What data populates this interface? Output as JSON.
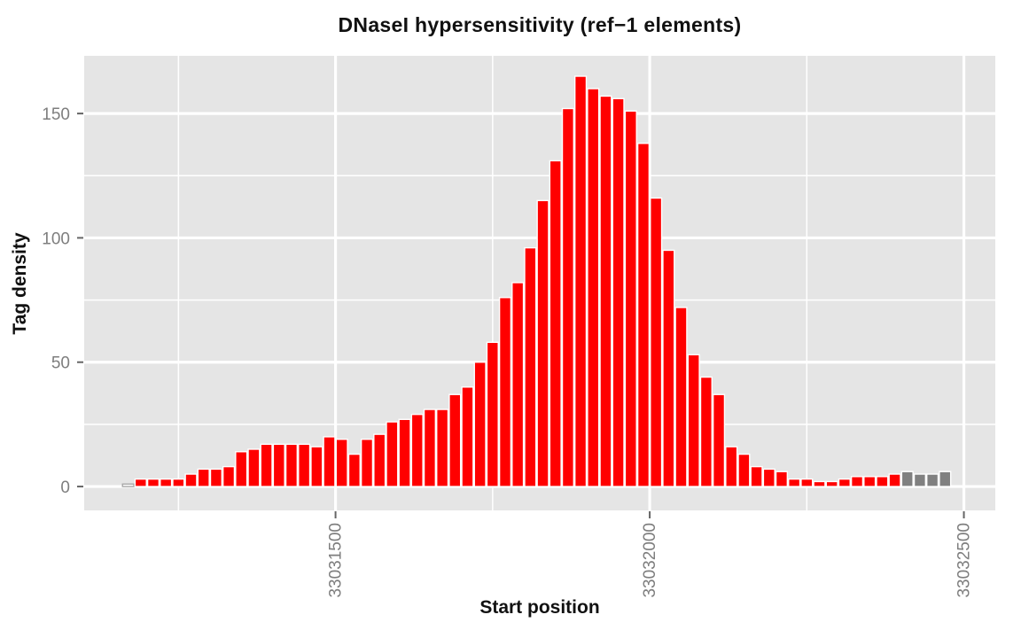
{
  "figure": {
    "title": "DNaseI hypersensitivity (ref−1 elements)",
    "x_axis_title": "Start position",
    "y_axis_title": "Tag density"
  },
  "chart_data": {
    "type": "bar",
    "subtype": "histogram",
    "title": "DNaseI hypersensitivity (ref−1 elements)",
    "xlabel": "Start position",
    "ylabel": "Tag density",
    "grid": true,
    "legend": false,
    "bin_width": 20,
    "x_domain": [
      33031100,
      33032550
    ],
    "y_domain": [
      -9.6,
      173.2
    ],
    "x_major_ticks": [
      33031500,
      33032000,
      33032500
    ],
    "x_tick_labels": [
      "33031500",
      "33032000",
      "33032500"
    ],
    "x_minor_gridlines": [
      33031250,
      33031750,
      33032250
    ],
    "y_major_ticks": [
      0,
      50,
      100,
      150
    ],
    "y_tick_labels": [
      "0",
      "50",
      "100",
      "150"
    ],
    "y_minor_gridlines": [
      25,
      75,
      125
    ],
    "colors": {
      "bar_red": "#FF0000",
      "bar_gray": "#808080",
      "bar_first": "#FFFFFF",
      "bar_first_stroke": "#A8A8A8",
      "bar_stroke": "#FFFFFF",
      "panel_bg": "#E5E5E5",
      "grid": "#FFFFFF",
      "tick_text": "#7E7E7E",
      "tick_mark": "#666666",
      "title_text": "#111111"
    },
    "bars": [
      {
        "start": 33031160,
        "count": 1,
        "group": "first"
      },
      {
        "start": 33031180,
        "count": 3,
        "group": "red"
      },
      {
        "start": 33031200,
        "count": 3,
        "group": "red"
      },
      {
        "start": 33031220,
        "count": 3,
        "group": "red"
      },
      {
        "start": 33031240,
        "count": 3,
        "group": "red"
      },
      {
        "start": 33031260,
        "count": 5,
        "group": "red"
      },
      {
        "start": 33031280,
        "count": 7,
        "group": "red"
      },
      {
        "start": 33031300,
        "count": 7,
        "group": "red"
      },
      {
        "start": 33031320,
        "count": 8,
        "group": "red"
      },
      {
        "start": 33031340,
        "count": 14,
        "group": "red"
      },
      {
        "start": 33031360,
        "count": 15,
        "group": "red"
      },
      {
        "start": 33031380,
        "count": 17,
        "group": "red"
      },
      {
        "start": 33031400,
        "count": 17,
        "group": "red"
      },
      {
        "start": 33031420,
        "count": 17,
        "group": "red"
      },
      {
        "start": 33031440,
        "count": 17,
        "group": "red"
      },
      {
        "start": 33031460,
        "count": 16,
        "group": "red"
      },
      {
        "start": 33031480,
        "count": 20,
        "group": "red"
      },
      {
        "start": 33031500,
        "count": 19,
        "group": "red"
      },
      {
        "start": 33031520,
        "count": 13,
        "group": "red"
      },
      {
        "start": 33031540,
        "count": 19,
        "group": "red"
      },
      {
        "start": 33031560,
        "count": 21,
        "group": "red"
      },
      {
        "start": 33031580,
        "count": 26,
        "group": "red"
      },
      {
        "start": 33031600,
        "count": 27,
        "group": "red"
      },
      {
        "start": 33031620,
        "count": 29,
        "group": "red"
      },
      {
        "start": 33031640,
        "count": 31,
        "group": "red"
      },
      {
        "start": 33031660,
        "count": 31,
        "group": "red"
      },
      {
        "start": 33031680,
        "count": 37,
        "group": "red"
      },
      {
        "start": 33031700,
        "count": 40,
        "group": "red"
      },
      {
        "start": 33031720,
        "count": 50,
        "group": "red"
      },
      {
        "start": 33031740,
        "count": 58,
        "group": "red"
      },
      {
        "start": 33031760,
        "count": 76,
        "group": "red"
      },
      {
        "start": 33031780,
        "count": 82,
        "group": "red"
      },
      {
        "start": 33031800,
        "count": 96,
        "group": "red"
      },
      {
        "start": 33031820,
        "count": 115,
        "group": "red"
      },
      {
        "start": 33031840,
        "count": 131,
        "group": "red"
      },
      {
        "start": 33031860,
        "count": 152,
        "group": "red"
      },
      {
        "start": 33031880,
        "count": 165,
        "group": "red"
      },
      {
        "start": 33031900,
        "count": 160,
        "group": "red"
      },
      {
        "start": 33031920,
        "count": 157,
        "group": "red"
      },
      {
        "start": 33031940,
        "count": 156,
        "group": "red"
      },
      {
        "start": 33031960,
        "count": 151,
        "group": "red"
      },
      {
        "start": 33031980,
        "count": 138,
        "group": "red"
      },
      {
        "start": 33032000,
        "count": 116,
        "group": "red"
      },
      {
        "start": 33032020,
        "count": 95,
        "group": "red"
      },
      {
        "start": 33032040,
        "count": 72,
        "group": "red"
      },
      {
        "start": 33032060,
        "count": 53,
        "group": "red"
      },
      {
        "start": 33032080,
        "count": 44,
        "group": "red"
      },
      {
        "start": 33032100,
        "count": 37,
        "group": "red"
      },
      {
        "start": 33032120,
        "count": 16,
        "group": "red"
      },
      {
        "start": 33032140,
        "count": 13,
        "group": "red"
      },
      {
        "start": 33032160,
        "count": 8,
        "group": "red"
      },
      {
        "start": 33032180,
        "count": 7,
        "group": "red"
      },
      {
        "start": 33032200,
        "count": 6,
        "group": "red"
      },
      {
        "start": 33032220,
        "count": 3,
        "group": "red"
      },
      {
        "start": 33032240,
        "count": 3,
        "group": "red"
      },
      {
        "start": 33032260,
        "count": 2,
        "group": "red"
      },
      {
        "start": 33032280,
        "count": 2,
        "group": "red"
      },
      {
        "start": 33032300,
        "count": 3,
        "group": "red"
      },
      {
        "start": 33032320,
        "count": 4,
        "group": "red"
      },
      {
        "start": 33032340,
        "count": 4,
        "group": "red"
      },
      {
        "start": 33032360,
        "count": 4,
        "group": "red"
      },
      {
        "start": 33032380,
        "count": 5,
        "group": "red"
      },
      {
        "start": 33032400,
        "count": 6,
        "group": "gray"
      },
      {
        "start": 33032420,
        "count": 5,
        "group": "gray"
      },
      {
        "start": 33032440,
        "count": 5,
        "group": "gray"
      },
      {
        "start": 33032460,
        "count": 6,
        "group": "gray"
      }
    ]
  }
}
